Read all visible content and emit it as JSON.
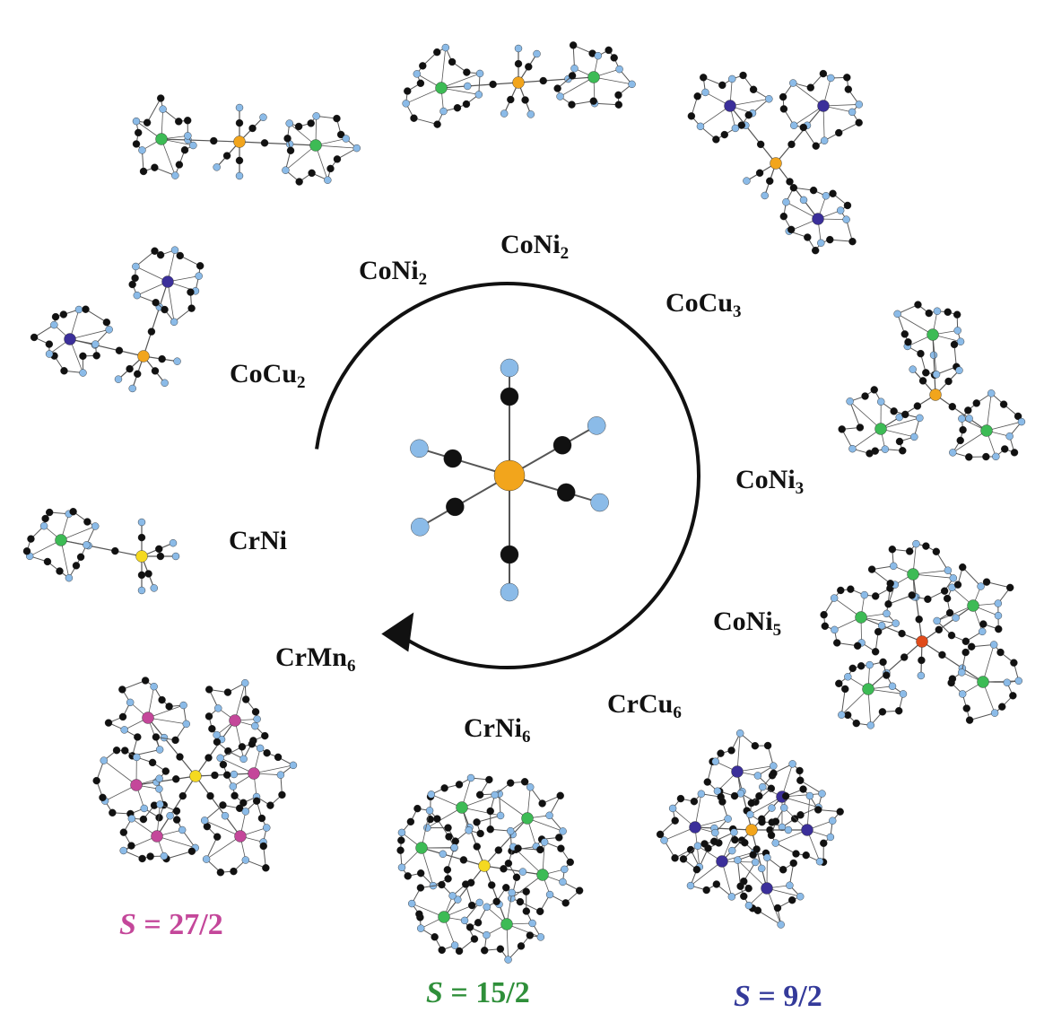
{
  "labels": [
    {
      "base": "CoNi",
      "sub": "2"
    },
    {
      "base": "CoNi",
      "sub": "2"
    },
    {
      "base": "CoCu",
      "sub": "3"
    },
    {
      "base": "CoCu",
      "sub": "2"
    },
    {
      "base": "CoNi",
      "sub": "3"
    },
    {
      "base": "CrNi",
      "sub": ""
    },
    {
      "base": "CoNi",
      "sub": "5"
    },
    {
      "base": "CrMn",
      "sub": "6"
    },
    {
      "base": "CrCu",
      "sub": "6"
    },
    {
      "base": "CrNi",
      "sub": "6"
    }
  ],
  "spins": [
    {
      "symbol": "S",
      "eq": " = ",
      "value": "27/2",
      "color": "#c4479a"
    },
    {
      "symbol": "S",
      "eq": " = ",
      "value": "15/2",
      "color": "#2f8f3a"
    },
    {
      "symbol": "S",
      "eq": " = ",
      "value": "9/2",
      "color": "#343a9a"
    }
  ],
  "atom_colors": {
    "carbon": "#111111",
    "nitrogen": "#8bbbe8",
    "core_metal": "#f2a51c",
    "ni": "#3dbb55",
    "cu": "#3b2f9a",
    "mn": "#c4479a",
    "cr_core": "#f5d920",
    "co_core_alt": "#e04b1a"
  }
}
